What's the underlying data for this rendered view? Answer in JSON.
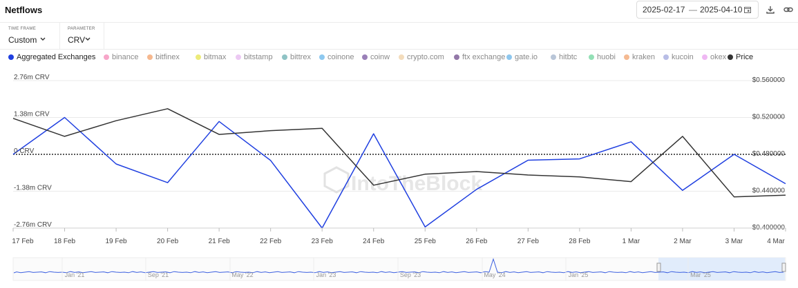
{
  "header": {
    "title": "Netflows",
    "date_from": "2025-02-17",
    "date_sep": "—",
    "date_to": "2025-04-10",
    "calendar_icon": "calendar-icon",
    "download_icon": "download-icon",
    "link_icon": "link-icon"
  },
  "controls": {
    "timeframe_label": "TIME FRAME",
    "timeframe_value": "Custom",
    "parameter_label": "PARAMETER",
    "parameter_value": "CRV"
  },
  "legend": [
    {
      "label": "Aggregated Exchanges",
      "color": "#1f3fe0",
      "active": true
    },
    {
      "label": "binance",
      "color": "#f7a6c9",
      "active": false
    },
    {
      "label": "bitfinex",
      "color": "#f6b88f",
      "active": false
    },
    {
      "label": "bitmax",
      "color": "#eceb7a",
      "active": false
    },
    {
      "label": "bitstamp",
      "color": "#ecc9f3",
      "active": false
    },
    {
      "label": "bittrex",
      "color": "#8fc3c5",
      "active": false
    },
    {
      "label": "coinone",
      "color": "#8ec9f0",
      "active": false
    },
    {
      "label": "coinw",
      "color": "#9a80b8",
      "active": false
    },
    {
      "label": "crypto.com",
      "color": "#f3dcbc",
      "active": false
    },
    {
      "label": "ftx exchange",
      "color": "#9378a8",
      "active": false
    },
    {
      "label": "gate.io",
      "color": "#8ec7ee",
      "active": false
    },
    {
      "label": "hitbtc",
      "color": "#b9c6d8",
      "active": false
    },
    {
      "label": "huobi",
      "color": "#93e0b6",
      "active": false
    },
    {
      "label": "kraken",
      "color": "#f5ba92",
      "active": false
    },
    {
      "label": "kucoin",
      "color": "#b8bde6",
      "active": false
    },
    {
      "label": "okex",
      "color": "#efb8f3",
      "active": false
    },
    {
      "label": "Price",
      "color": "#333333",
      "active": true
    }
  ],
  "watermark": "IntoTheBlock",
  "chart_data": {
    "type": "line",
    "categories": [
      "17 Feb",
      "18 Feb",
      "19 Feb",
      "20 Feb",
      "21 Feb",
      "22 Feb",
      "23 Feb",
      "24 Feb",
      "25 Feb",
      "26 Feb",
      "27 Feb",
      "28 Feb",
      "1 Mar",
      "2 Mar",
      "3 Mar",
      "4 Mar"
    ],
    "series": [
      {
        "name": "Aggregated Exchanges",
        "axis": "left",
        "unit": "CRV",
        "color": "#1f3fe0",
        "values": [
          0,
          1380000,
          -360000,
          -1060000,
          1230000,
          -230000,
          -2760000,
          770000,
          -2720000,
          -1310000,
          -220000,
          -170000,
          470000,
          -1350000,
          0,
          -1100000
        ]
      },
      {
        "name": "Price",
        "axis": "right",
        "unit": "USD",
        "color": "#333333",
        "values": [
          0.519,
          0.4995,
          0.5165,
          0.5295,
          0.5016,
          0.5057,
          0.5082,
          0.4465,
          0.4585,
          0.4613,
          0.4576,
          0.4555,
          0.4504,
          0.4995,
          0.4339,
          0.4357
        ]
      }
    ],
    "y_left": {
      "ticks": [
        "2.76m CRV",
        "1.38m CRV",
        "0 CRV",
        "-1.38m CRV",
        "-2.76m CRV"
      ],
      "range": [
        -2760000,
        2760000
      ]
    },
    "y_right": {
      "ticks": [
        "$0.560000",
        "$0.520000",
        "$0.480000",
        "$0.440000",
        "$0.400000"
      ],
      "range": [
        0.4,
        0.56
      ]
    },
    "zero_line": "dotted",
    "grid": "horizontal",
    "legend_position": "top"
  },
  "navigator": {
    "labels": [
      "Jan '21",
      "Sep '21",
      "May '22",
      "Jan '23",
      "Sep '23",
      "May '24",
      "Jan '25",
      "Mar '25"
    ]
  }
}
